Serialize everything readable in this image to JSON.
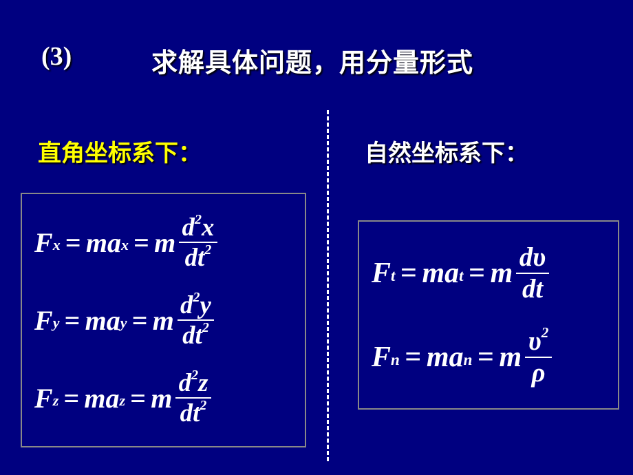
{
  "slide": {
    "background_color": "#000080",
    "title_number": "(3)",
    "title_text": "求解具体问题，用分量形式",
    "title_color": "#ffffff",
    "title_fontsize_pt": 30,
    "left_section_label": "直角坐标系下：",
    "left_section_color": "#ffff00",
    "right_section_label": "自然坐标系下：",
    "right_section_color": "#ffffff",
    "section_fontsize_pt": 26,
    "divider_style": "dashed",
    "divider_color": "#ffffff",
    "eq_box_border_color": "#888888",
    "eq_text_color": "#ffffff",
    "eq_fontfamily": "Times New Roman",
    "eq_fontstyle": "italic bold",
    "eq_fontsize_pt": 32,
    "symbols": {
      "F": "F",
      "m": "m",
      "a": "a",
      "d": "d",
      "t": "t",
      "x": "x",
      "y": "y",
      "z": "z",
      "n": "n",
      "t_sub": "t",
      "eq": "=",
      "upsilon": "υ",
      "rho": "ρ",
      "two": "2"
    },
    "left_equations": [
      {
        "sub": "x",
        "num_var": "x"
      },
      {
        "sub": "y",
        "num_var": "y"
      },
      {
        "sub": "z",
        "num_var": "z"
      }
    ],
    "right_equations": [
      {
        "sub": "t",
        "frac_num": "dυ",
        "frac_den": "dt"
      },
      {
        "sub": "n",
        "frac_num": "υ²",
        "frac_den": "ρ"
      }
    ]
  }
}
